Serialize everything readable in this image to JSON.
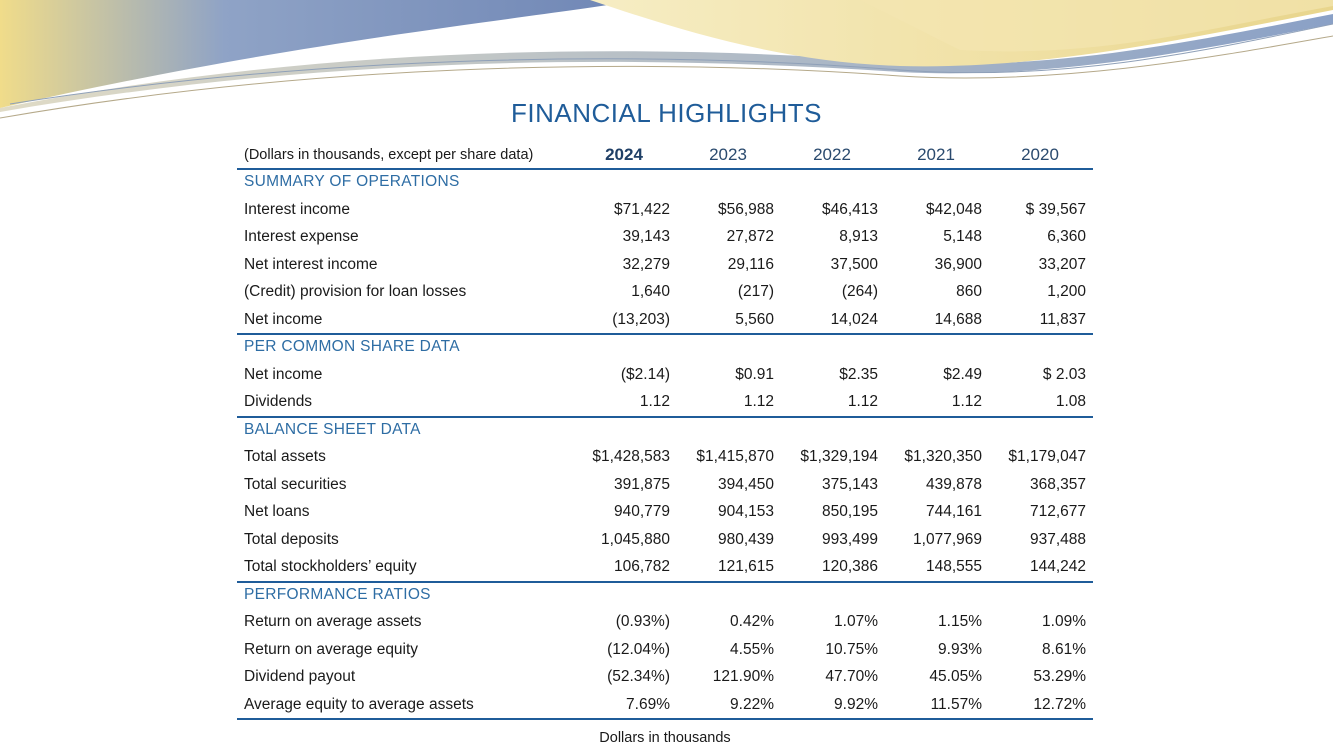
{
  "title": "FINANCIAL HIGHLIGHTS",
  "header": {
    "label": "(Dollars in thousands, except per share data)",
    "years": [
      "2024",
      "2023",
      "2022",
      "2021",
      "2020"
    ]
  },
  "sections": [
    {
      "title": "SUMMARY OF OPERATIONS",
      "rows": [
        {
          "label": "Interest income",
          "values": [
            "$71,422",
            "$56,988",
            "$46,413",
            "$42,048",
            "$ 39,567"
          ]
        },
        {
          "label": "Interest expense",
          "values": [
            "39,143",
            "27,872",
            "8,913",
            "5,148",
            "6,360"
          ]
        },
        {
          "label": "Net interest income",
          "values": [
            "32,279",
            "29,116",
            "37,500",
            "36,900",
            "33,207"
          ]
        },
        {
          "label": "(Credit) provision for loan losses",
          "values": [
            "1,640",
            "(217)",
            "(264)",
            "860",
            "1,200"
          ]
        },
        {
          "label": "Net income",
          "values": [
            "(13,203)",
            "5,560",
            "14,024",
            "14,688",
            "11,837"
          ]
        }
      ]
    },
    {
      "title": "PER COMMON SHARE DATA",
      "rows": [
        {
          "label": "Net income",
          "values": [
            "($2.14)",
            "$0.91",
            "$2.35",
            "$2.49",
            "$ 2.03"
          ]
        },
        {
          "label": "Dividends",
          "values": [
            "1.12",
            "1.12",
            "1.12",
            "1.12",
            "1.08"
          ]
        }
      ]
    },
    {
      "title": "BALANCE SHEET DATA",
      "rows": [
        {
          "label": "Total assets",
          "values": [
            "$1,428,583",
            "$1,415,870",
            "$1,329,194",
            "$1,320,350",
            "$1,179,047"
          ]
        },
        {
          "label": "Total securities",
          "values": [
            "391,875",
            "394,450",
            "375,143",
            "439,878",
            "368,357"
          ]
        },
        {
          "label": "Net loans",
          "values": [
            "940,779",
            "904,153",
            "850,195",
            "744,161",
            "712,677"
          ]
        },
        {
          "label": "Total deposits",
          "values": [
            "1,045,880",
            "980,439",
            "993,499",
            "1,077,969",
            "937,488"
          ]
        },
        {
          "label": "Total stockholders’ equity",
          "values": [
            "106,782",
            "121,615",
            "120,386",
            "148,555",
            "144,242"
          ]
        }
      ]
    },
    {
      "title": "PERFORMANCE RATIOS",
      "rows": [
        {
          "label": "Return on average assets",
          "values": [
            "(0.93%)",
            "0.42%",
            "1.07%",
            "1.15%",
            "1.09%"
          ]
        },
        {
          "label": "Return on average equity",
          "values": [
            "(12.04%)",
            "4.55%",
            "10.75%",
            "9.93%",
            "8.61%"
          ]
        },
        {
          "label": "Dividend payout",
          "values": [
            "(52.34%)",
            "121.90%",
            "47.70%",
            "45.05%",
            "53.29%"
          ]
        },
        {
          "label": "Average equity to average assets",
          "values": [
            "7.69%",
            "9.22%",
            "9.92%",
            "11.57%",
            "12.72%"
          ]
        }
      ]
    }
  ],
  "footnote": "Dollars in thousands"
}
